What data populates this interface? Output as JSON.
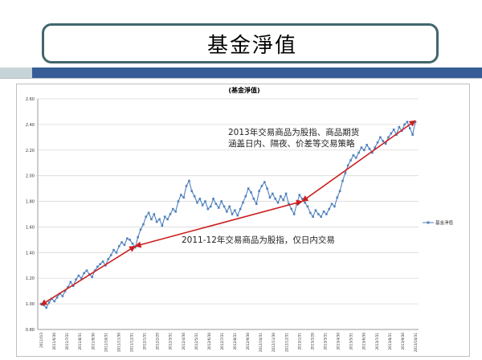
{
  "slide": {
    "title": "基金淨值"
  },
  "chart_data": {
    "type": "line",
    "title": "(基金淨值)",
    "legend": {
      "label": "基金淨值",
      "position": "right"
    },
    "ylim": [
      0.8,
      2.6
    ],
    "yticks": [
      "0.80",
      "1.00",
      "1.20",
      "1.40",
      "1.60",
      "1.80",
      "2.00",
      "2.20",
      "2.40",
      "2.60"
    ],
    "grid": true,
    "x_labels": [
      "2011/5/3",
      "2011/6/30",
      "2011/7/31",
      "2011/8/31",
      "2011/9/30",
      "2011/10/31",
      "2011/11/30",
      "2011/12/31",
      "2012/1/31",
      "2012/2/29",
      "2012/3/31",
      "2012/4/30",
      "2012/5/31",
      "2012/6/30",
      "2012/7/31",
      "2012/8/31",
      "2012/9/30",
      "2012/10/31",
      "2012/11/30",
      "2012/12/31",
      "2013/1/31",
      "2013/2/28",
      "2013/3/31",
      "2013/4/30",
      "2013/5/31",
      "2013/6/30",
      "2013/7/31",
      "2013/8/31",
      "2013/9/30",
      "2013/10/31"
    ],
    "series": [
      {
        "name": "基金淨值",
        "color": "#4f81bd",
        "values": [
          1.0,
          0.99,
          0.97,
          1.01,
          1.04,
          1.02,
          1.05,
          1.08,
          1.06,
          1.1,
          1.13,
          1.17,
          1.14,
          1.19,
          1.22,
          1.2,
          1.24,
          1.26,
          1.23,
          1.21,
          1.26,
          1.29,
          1.31,
          1.33,
          1.3,
          1.35,
          1.38,
          1.42,
          1.4,
          1.45,
          1.48,
          1.46,
          1.51,
          1.5,
          1.47,
          1.44,
          1.52,
          1.58,
          1.62,
          1.68,
          1.71,
          1.66,
          1.7,
          1.64,
          1.66,
          1.61,
          1.68,
          1.66,
          1.7,
          1.74,
          1.72,
          1.8,
          1.85,
          1.83,
          1.92,
          1.96,
          1.88,
          1.84,
          1.79,
          1.82,
          1.77,
          1.8,
          1.74,
          1.76,
          1.82,
          1.78,
          1.75,
          1.8,
          1.76,
          1.72,
          1.76,
          1.7,
          1.73,
          1.69,
          1.74,
          1.79,
          1.84,
          1.9,
          1.87,
          1.82,
          1.78,
          1.88,
          1.92,
          1.95,
          1.9,
          1.83,
          1.86,
          1.82,
          1.79,
          1.84,
          1.81,
          1.86,
          1.78,
          1.74,
          1.7,
          1.78,
          1.85,
          1.82,
          1.79,
          1.76,
          1.71,
          1.68,
          1.73,
          1.7,
          1.68,
          1.72,
          1.7,
          1.74,
          1.78,
          1.76,
          1.83,
          1.88,
          1.96,
          2.02,
          2.08,
          2.12,
          2.16,
          2.14,
          2.18,
          2.22,
          2.2,
          2.24,
          2.21,
          2.18,
          2.22,
          2.26,
          2.3,
          2.27,
          2.25,
          2.3,
          2.33,
          2.36,
          2.32,
          2.38,
          2.35,
          2.4,
          2.42,
          2.37,
          2.32,
          2.42
        ]
      }
    ],
    "annotations": [
      {
        "text": "2013年交易商品为股指、商品期货",
        "line": 1
      },
      {
        "text": "涵盖日内、隔夜、价差等交易策略",
        "line": 2
      },
      {
        "text": "2011-12年交易商品为股指，仅日内交易",
        "line": 3
      }
    ],
    "arrows": [
      {
        "from_index": 0,
        "to_index": 35,
        "from_value": 0.99,
        "to_value": 1.45,
        "color": "#cc1f1f"
      },
      {
        "from_index": 35,
        "to_index": 97,
        "from_value": 1.45,
        "to_value": 1.8,
        "color": "#cc1f1f"
      },
      {
        "from_index": 97,
        "to_index": 139,
        "from_value": 1.8,
        "to_value": 2.43,
        "color": "#cc1f1f"
      }
    ]
  }
}
